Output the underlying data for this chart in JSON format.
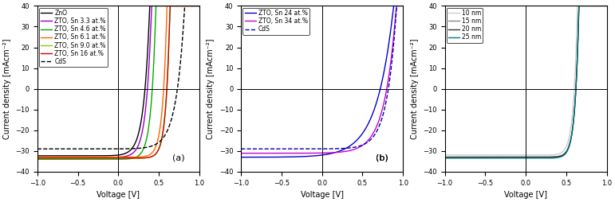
{
  "panel_a": {
    "title": "(a)",
    "xlabel": "Voltage [V]",
    "ylabel": "Current density [mAcm⁻²]",
    "xlim": [
      -1.0,
      1.0
    ],
    "ylim": [
      -40,
      40
    ],
    "yticks": [
      -40,
      -30,
      -20,
      -10,
      0,
      10,
      20,
      30,
      40
    ],
    "xticks": [
      -1.0,
      -0.5,
      0.0,
      0.5,
      1.0
    ],
    "curves": [
      {
        "label": "ZnO",
        "color": "#000000",
        "linestyle": "-",
        "Voc": 0.33,
        "Jsc": -32.0,
        "nf": 2.8
      },
      {
        "label": "ZTO, Sn 3.3 at.%",
        "color": "#9900cc",
        "linestyle": "-",
        "Voc": 0.36,
        "Jsc": -33.0,
        "nf": 2.5
      },
      {
        "label": "ZTO, Sn 4.6 at.%",
        "color": "#00aa00",
        "linestyle": "-",
        "Voc": 0.42,
        "Jsc": -34.0,
        "nf": 2.2
      },
      {
        "label": "ZTO, Sn 6.1 at.%",
        "color": "#ff6600",
        "linestyle": "-",
        "Voc": 0.56,
        "Jsc": -33.0,
        "nf": 2.0
      },
      {
        "label": "ZTO, Sn 9.0 at.%",
        "color": "#88cc00",
        "linestyle": "-",
        "Voc": 0.6,
        "Jsc": -33.5,
        "nf": 1.9
      },
      {
        "label": "ZTO, Sn 16 at.%",
        "color": "#cc0000",
        "linestyle": "-",
        "Voc": 0.6,
        "Jsc": -33.5,
        "nf": 1.9
      },
      {
        "label": "CdS",
        "color": "#000000",
        "linestyle": "--",
        "Voc": 0.73,
        "Jsc": -29.0,
        "nf": 4.0
      }
    ]
  },
  "panel_b": {
    "title": "(b)",
    "xlabel": "Voltage [V]",
    "ylabel": "Current density [mAcm⁻²]",
    "xlim": [
      -1.0,
      1.0
    ],
    "ylim": [
      -40,
      40
    ],
    "yticks": [
      -40,
      -30,
      -20,
      -10,
      0,
      10,
      20,
      30,
      40
    ],
    "xticks": [
      -1.0,
      -0.5,
      0.0,
      0.5,
      1.0
    ],
    "curves": [
      {
        "label": "ZTO, Sn 24 at.%",
        "color": "#0000cc",
        "linestyle": "-",
        "Voc": 0.72,
        "Jsc": -32.0,
        "nf": 8.0
      },
      {
        "label": "ZTO, Sn 34 at.%",
        "color": "#cc00cc",
        "linestyle": "-",
        "Voc": 0.8,
        "Jsc": -31.0,
        "nf": 5.5
      },
      {
        "label": "CdS",
        "color": "#0000bb",
        "linestyle": "--",
        "Voc": 0.82,
        "Jsc": -29.0,
        "nf": 4.5
      }
    ]
  },
  "panel_c": {
    "title": "",
    "xlabel": "Voltage [V]",
    "ylabel": "Current density [mAcm⁻²]",
    "xlim": [
      -1.0,
      1.0
    ],
    "ylim": [
      -40,
      40
    ],
    "yticks": [
      -40,
      -30,
      -20,
      -10,
      0,
      10,
      20,
      30,
      40
    ],
    "xticks": [
      -1.0,
      -0.5,
      0.0,
      0.5,
      1.0
    ],
    "curves": [
      {
        "label": "10 nm",
        "color": "#cccccc",
        "linestyle": "-",
        "Voc": 0.6,
        "Jsc": -32.0,
        "nf": 1.85
      },
      {
        "label": "15 nm",
        "color": "#888888",
        "linestyle": "-",
        "Voc": 0.62,
        "Jsc": -33.0,
        "nf": 1.82
      },
      {
        "label": "20 nm",
        "color": "#333333",
        "linestyle": "-",
        "Voc": 0.62,
        "Jsc": -33.0,
        "nf": 1.8
      },
      {
        "label": "25 nm",
        "color": "#007878",
        "linestyle": "-",
        "Voc": 0.62,
        "Jsc": -33.5,
        "nf": 1.8
      }
    ]
  },
  "label_fontsize": 7,
  "tick_fontsize": 6,
  "legend_fontsize": 5.5,
  "linewidth": 1.0,
  "figsize": [
    7.71,
    2.54
  ],
  "dpi": 100
}
